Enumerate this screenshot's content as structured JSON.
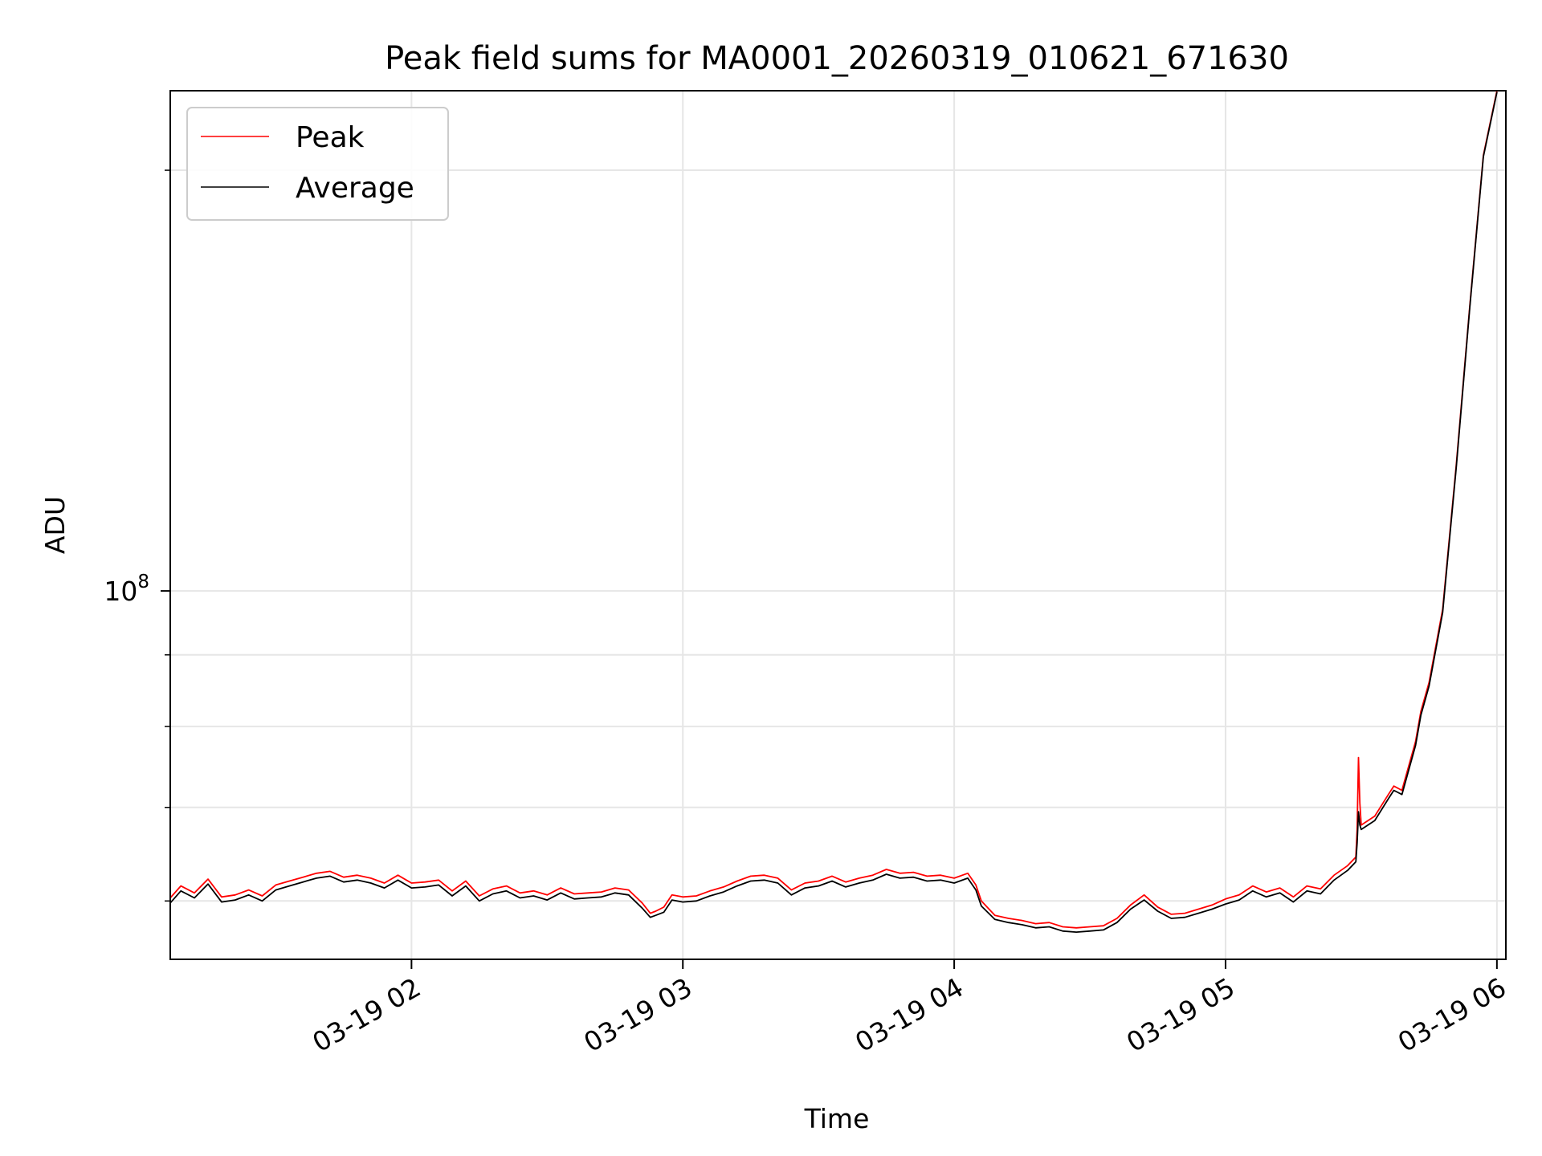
{
  "chart_data": {
    "type": "line",
    "title": "Peak field sums for MA0001_20260319_010621_671630",
    "xlabel": "Time",
    "ylabel": "ADU",
    "yscale": "log",
    "grid": true,
    "legend_position": "upper-left",
    "x_unit": "hours since 03-19 00:00",
    "xlim": [
      1.111,
      6.033
    ],
    "ylim": [
      54500000,
      228000000
    ],
    "x_ticks": [
      {
        "value": 2,
        "label": "03-19 02"
      },
      {
        "value": 3,
        "label": "03-19 03"
      },
      {
        "value": 4,
        "label": "03-19 04"
      },
      {
        "value": 5,
        "label": "03-19 05"
      },
      {
        "value": 6,
        "label": "03-19 06"
      }
    ],
    "y_major_ticks": [
      {
        "value": 100000000,
        "label_base": "10",
        "label_exp": "8"
      }
    ],
    "y_minor_ticks": [
      60000000,
      70000000,
      80000000,
      90000000,
      200000000
    ],
    "series": [
      {
        "name": "Peak",
        "color": "#ff0000",
        "points": [
          [
            1.111,
            60.3
          ],
          [
            1.15,
            61.5
          ],
          [
            1.2,
            60.8
          ],
          [
            1.25,
            62.2
          ],
          [
            1.3,
            60.4
          ],
          [
            1.35,
            60.6
          ],
          [
            1.4,
            61.1
          ],
          [
            1.45,
            60.5
          ],
          [
            1.5,
            61.6
          ],
          [
            1.55,
            62.0
          ],
          [
            1.6,
            62.4
          ],
          [
            1.65,
            62.8
          ],
          [
            1.7,
            63.0
          ],
          [
            1.75,
            62.4
          ],
          [
            1.8,
            62.6
          ],
          [
            1.85,
            62.3
          ],
          [
            1.9,
            61.8
          ],
          [
            1.95,
            62.6
          ],
          [
            2.0,
            61.8
          ],
          [
            2.05,
            61.9
          ],
          [
            2.1,
            62.1
          ],
          [
            2.15,
            61.0
          ],
          [
            2.2,
            62.0
          ],
          [
            2.25,
            60.5
          ],
          [
            2.3,
            61.2
          ],
          [
            2.35,
            61.5
          ],
          [
            2.4,
            60.8
          ],
          [
            2.45,
            61.0
          ],
          [
            2.5,
            60.6
          ],
          [
            2.55,
            61.3
          ],
          [
            2.6,
            60.7
          ],
          [
            2.65,
            60.8
          ],
          [
            2.7,
            60.9
          ],
          [
            2.75,
            61.3
          ],
          [
            2.8,
            61.1
          ],
          [
            2.85,
            59.8
          ],
          [
            2.88,
            58.8
          ],
          [
            2.9,
            59.0
          ],
          [
            2.93,
            59.4
          ],
          [
            2.96,
            60.6
          ],
          [
            3.0,
            60.4
          ],
          [
            3.05,
            60.5
          ],
          [
            3.1,
            61.0
          ],
          [
            3.15,
            61.4
          ],
          [
            3.2,
            62.0
          ],
          [
            3.25,
            62.5
          ],
          [
            3.3,
            62.6
          ],
          [
            3.35,
            62.3
          ],
          [
            3.4,
            61.1
          ],
          [
            3.45,
            61.8
          ],
          [
            3.5,
            62.0
          ],
          [
            3.55,
            62.5
          ],
          [
            3.6,
            61.9
          ],
          [
            3.65,
            62.3
          ],
          [
            3.7,
            62.6
          ],
          [
            3.75,
            63.2
          ],
          [
            3.8,
            62.8
          ],
          [
            3.85,
            62.9
          ],
          [
            3.9,
            62.5
          ],
          [
            3.95,
            62.6
          ],
          [
            4.0,
            62.3
          ],
          [
            4.05,
            62.8
          ],
          [
            4.08,
            61.6
          ],
          [
            4.1,
            60.0
          ],
          [
            4.15,
            58.6
          ],
          [
            4.2,
            58.3
          ],
          [
            4.25,
            58.1
          ],
          [
            4.3,
            57.8
          ],
          [
            4.35,
            57.9
          ],
          [
            4.4,
            57.5
          ],
          [
            4.45,
            57.4
          ],
          [
            4.5,
            57.5
          ],
          [
            4.55,
            57.6
          ],
          [
            4.6,
            58.3
          ],
          [
            4.65,
            59.6
          ],
          [
            4.7,
            60.6
          ],
          [
            4.75,
            59.4
          ],
          [
            4.8,
            58.7
          ],
          [
            4.85,
            58.8
          ],
          [
            4.9,
            59.2
          ],
          [
            4.95,
            59.6
          ],
          [
            5.0,
            60.2
          ],
          [
            5.05,
            60.6
          ],
          [
            5.1,
            61.5
          ],
          [
            5.15,
            60.9
          ],
          [
            5.2,
            61.3
          ],
          [
            5.25,
            60.4
          ],
          [
            5.3,
            61.5
          ],
          [
            5.35,
            61.2
          ],
          [
            5.4,
            62.6
          ],
          [
            5.45,
            63.6
          ],
          [
            5.48,
            64.5
          ],
          [
            5.485,
            67.5
          ],
          [
            5.49,
            76.0
          ],
          [
            5.495,
            70.5
          ],
          [
            5.5,
            68.0
          ],
          [
            5.55,
            69.0
          ],
          [
            5.6,
            71.5
          ],
          [
            5.62,
            72.5
          ],
          [
            5.65,
            72.0
          ],
          [
            5.7,
            78.0
          ],
          [
            5.72,
            82.0
          ],
          [
            5.75,
            86.0
          ],
          [
            5.8,
            97.0
          ],
          [
            5.85,
            123.0
          ],
          [
            5.9,
            160.0
          ],
          [
            5.95,
            205.0
          ],
          [
            6.0,
            228.0
          ]
        ]
      },
      {
        "name": "Average",
        "color": "#000000",
        "points": [
          [
            1.111,
            59.8
          ],
          [
            1.15,
            61.0
          ],
          [
            1.2,
            60.3
          ],
          [
            1.25,
            61.7
          ],
          [
            1.3,
            59.9
          ],
          [
            1.35,
            60.1
          ],
          [
            1.4,
            60.6
          ],
          [
            1.45,
            60.0
          ],
          [
            1.5,
            61.1
          ],
          [
            1.55,
            61.5
          ],
          [
            1.6,
            61.9
          ],
          [
            1.65,
            62.3
          ],
          [
            1.7,
            62.5
          ],
          [
            1.75,
            61.9
          ],
          [
            1.8,
            62.1
          ],
          [
            1.85,
            61.8
          ],
          [
            1.9,
            61.3
          ],
          [
            1.95,
            62.1
          ],
          [
            2.0,
            61.3
          ],
          [
            2.05,
            61.4
          ],
          [
            2.1,
            61.6
          ],
          [
            2.15,
            60.5
          ],
          [
            2.2,
            61.5
          ],
          [
            2.25,
            60.0
          ],
          [
            2.3,
            60.7
          ],
          [
            2.35,
            61.0
          ],
          [
            2.4,
            60.3
          ],
          [
            2.45,
            60.5
          ],
          [
            2.5,
            60.1
          ],
          [
            2.55,
            60.8
          ],
          [
            2.6,
            60.2
          ],
          [
            2.65,
            60.3
          ],
          [
            2.7,
            60.4
          ],
          [
            2.75,
            60.8
          ],
          [
            2.8,
            60.6
          ],
          [
            2.85,
            59.3
          ],
          [
            2.88,
            58.4
          ],
          [
            2.9,
            58.6
          ],
          [
            2.93,
            58.9
          ],
          [
            2.96,
            60.1
          ],
          [
            3.0,
            59.9
          ],
          [
            3.05,
            60.0
          ],
          [
            3.1,
            60.5
          ],
          [
            3.15,
            60.9
          ],
          [
            3.2,
            61.5
          ],
          [
            3.25,
            62.0
          ],
          [
            3.3,
            62.1
          ],
          [
            3.35,
            61.8
          ],
          [
            3.4,
            60.6
          ],
          [
            3.45,
            61.3
          ],
          [
            3.5,
            61.5
          ],
          [
            3.55,
            62.0
          ],
          [
            3.6,
            61.4
          ],
          [
            3.65,
            61.8
          ],
          [
            3.7,
            62.1
          ],
          [
            3.75,
            62.7
          ],
          [
            3.8,
            62.3
          ],
          [
            3.85,
            62.4
          ],
          [
            3.9,
            62.0
          ],
          [
            3.95,
            62.1
          ],
          [
            4.0,
            61.8
          ],
          [
            4.05,
            62.3
          ],
          [
            4.08,
            61.1
          ],
          [
            4.1,
            59.5
          ],
          [
            4.15,
            58.2
          ],
          [
            4.2,
            57.9
          ],
          [
            4.25,
            57.7
          ],
          [
            4.3,
            57.4
          ],
          [
            4.35,
            57.5
          ],
          [
            4.4,
            57.1
          ],
          [
            4.45,
            57.0
          ],
          [
            4.5,
            57.1
          ],
          [
            4.55,
            57.2
          ],
          [
            4.6,
            57.9
          ],
          [
            4.65,
            59.2
          ],
          [
            4.7,
            60.1
          ],
          [
            4.75,
            59.0
          ],
          [
            4.8,
            58.3
          ],
          [
            4.85,
            58.4
          ],
          [
            4.9,
            58.8
          ],
          [
            4.95,
            59.2
          ],
          [
            5.0,
            59.7
          ],
          [
            5.05,
            60.1
          ],
          [
            5.1,
            61.0
          ],
          [
            5.15,
            60.4
          ],
          [
            5.2,
            60.8
          ],
          [
            5.25,
            59.9
          ],
          [
            5.3,
            61.0
          ],
          [
            5.35,
            60.7
          ],
          [
            5.4,
            62.1
          ],
          [
            5.45,
            63.1
          ],
          [
            5.48,
            64.0
          ],
          [
            5.485,
            66.0
          ],
          [
            5.49,
            69.5
          ],
          [
            5.495,
            68.0
          ],
          [
            5.5,
            67.5
          ],
          [
            5.55,
            68.5
          ],
          [
            5.6,
            71.0
          ],
          [
            5.62,
            72.0
          ],
          [
            5.65,
            71.5
          ],
          [
            5.7,
            77.5
          ],
          [
            5.72,
            81.5
          ],
          [
            5.75,
            85.5
          ],
          [
            5.8,
            96.5
          ],
          [
            5.85,
            122.5
          ],
          [
            5.9,
            159.5
          ],
          [
            5.95,
            204.5
          ],
          [
            6.0,
            227.5
          ]
        ]
      }
    ]
  }
}
